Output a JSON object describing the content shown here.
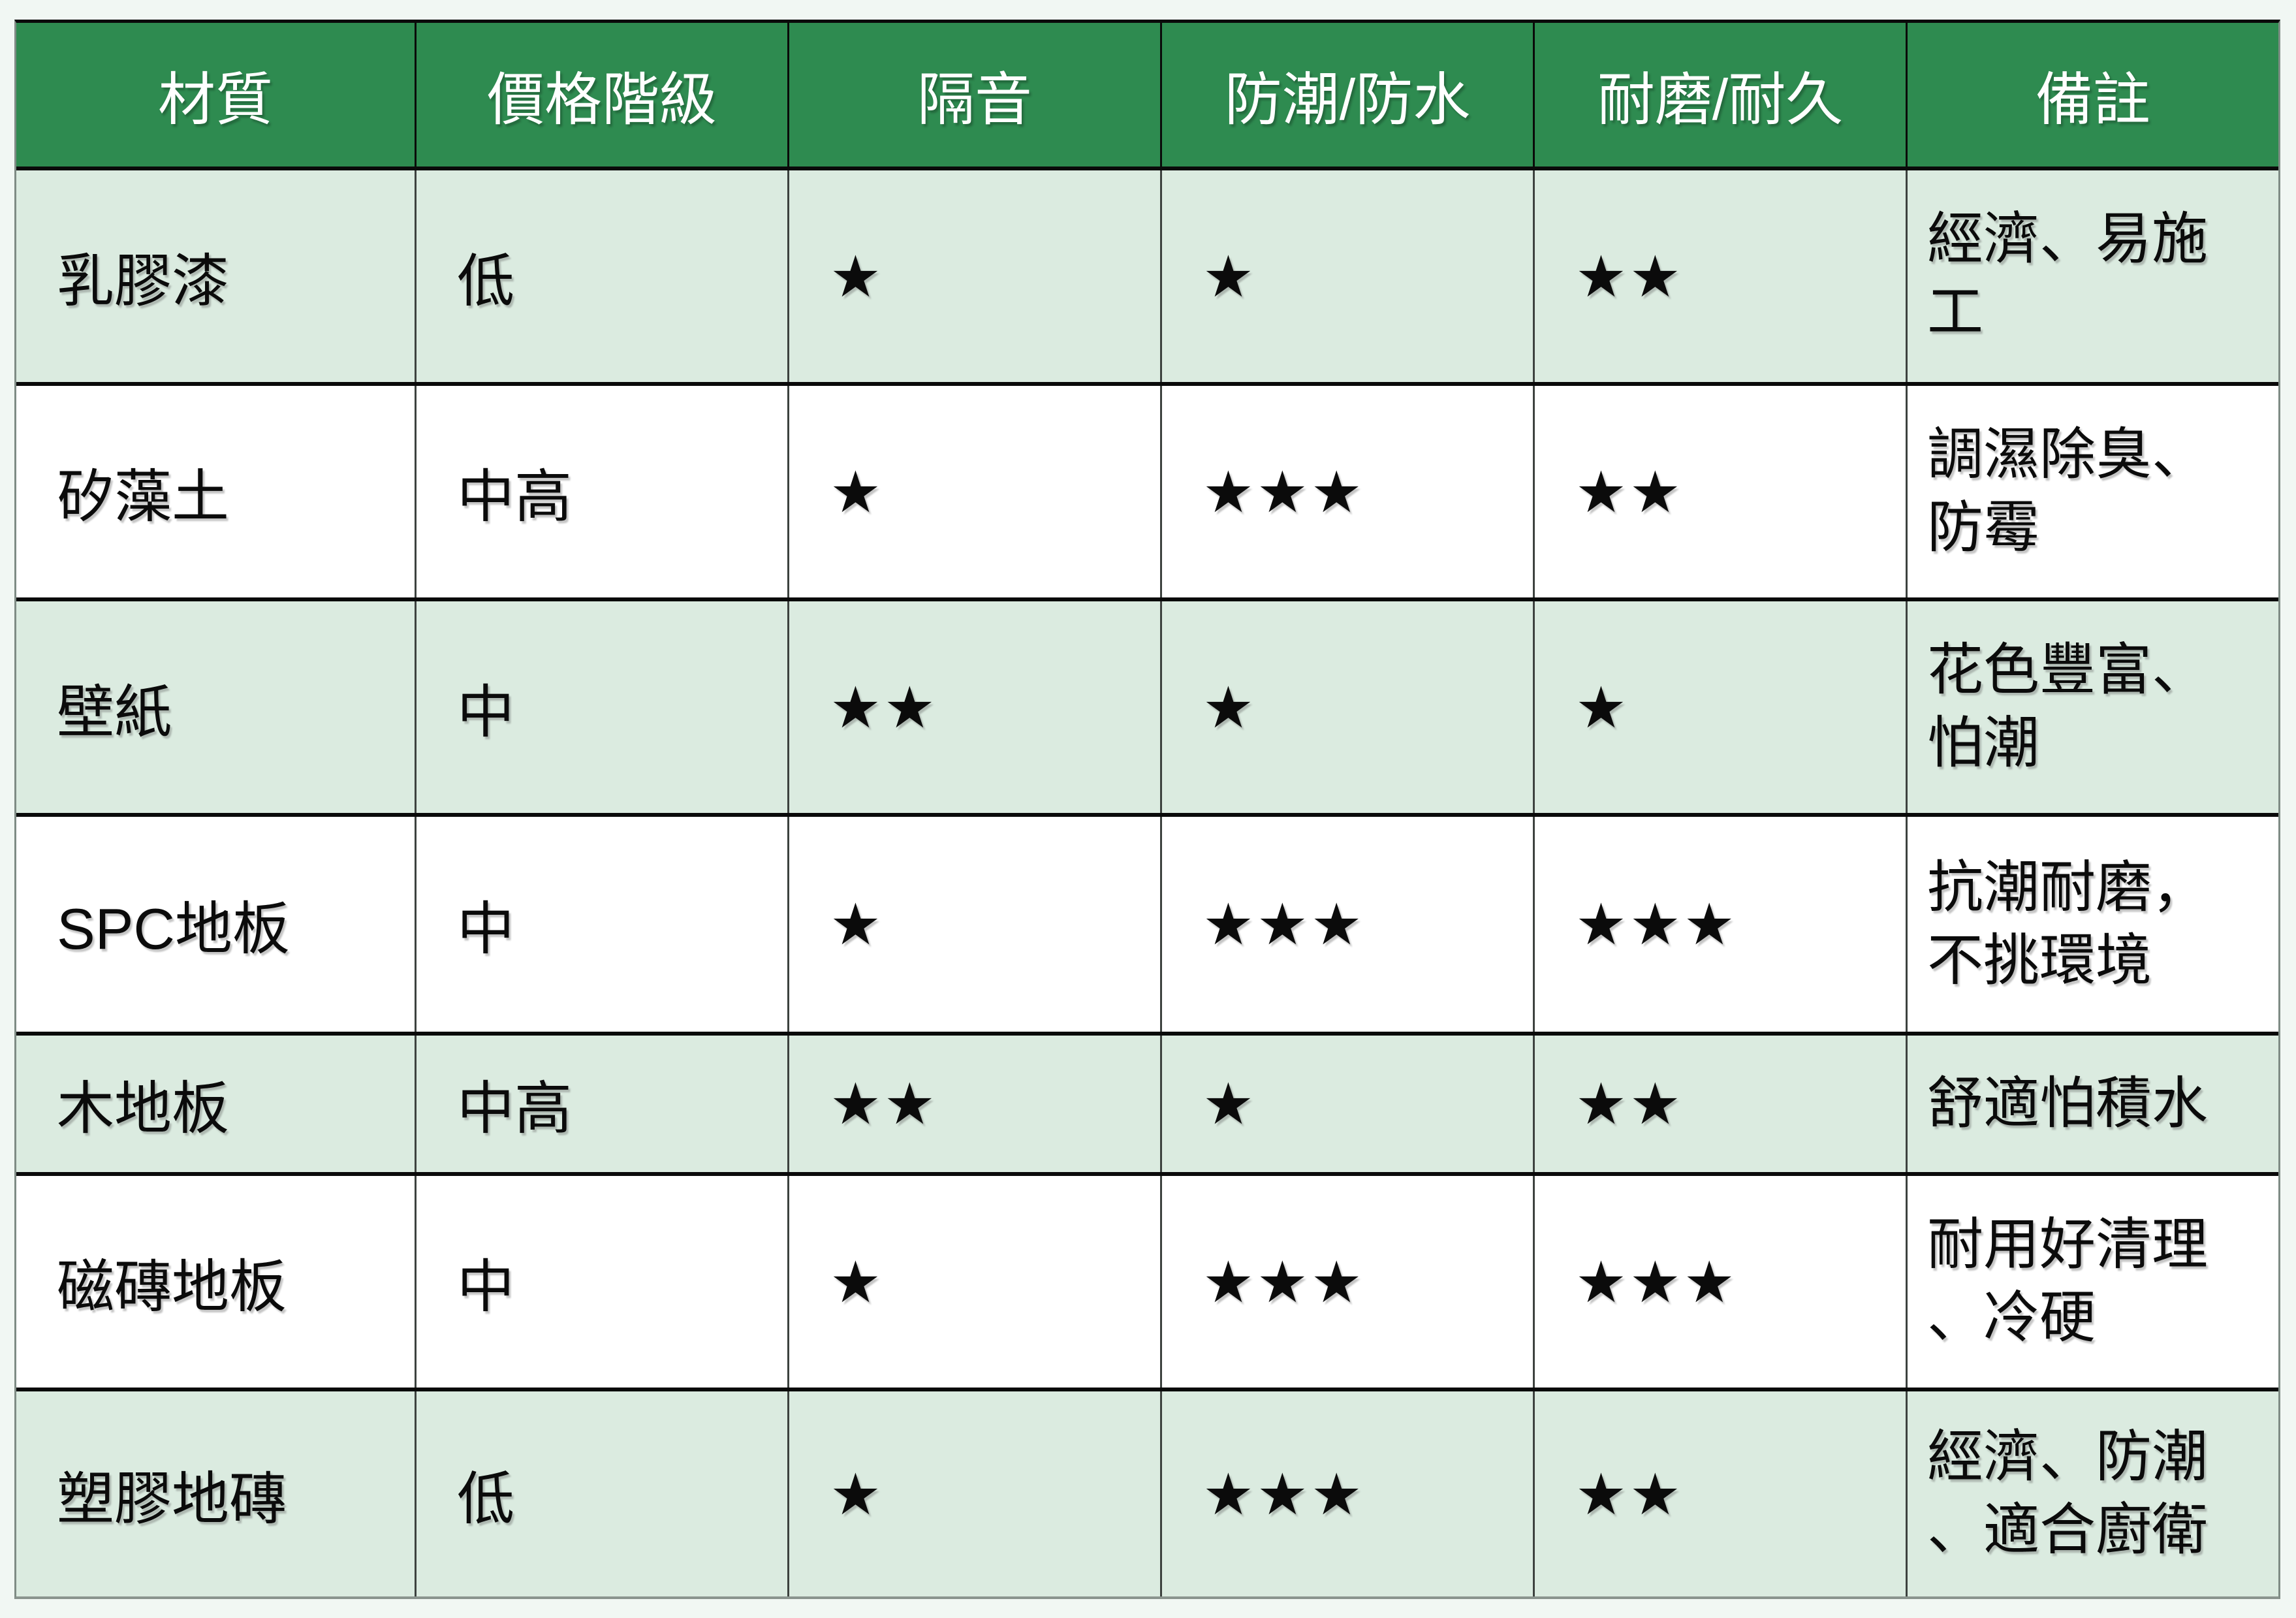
{
  "page": {
    "background": "#F1F7F3"
  },
  "table": {
    "header": {
      "bg": "#2E8B50",
      "text_color": "#FFFFFF",
      "columns": [
        "材質",
        "價格階級",
        "隔音",
        "防潮/防水",
        "耐磨/耐久",
        "備註"
      ]
    },
    "row_alt_bg": "#DBEBE0",
    "grid_line_color": "#0a0a0a",
    "outer_border_color": "#7f8c85",
    "rows": [
      {
        "material": "乳膠漆",
        "price": "低",
        "soundproof": "★",
        "waterproof": "★",
        "durability": "★★",
        "notes": "經濟、易施\n工"
      },
      {
        "material": "矽藻土",
        "price": "中高",
        "soundproof": "★",
        "waterproof": "★★★",
        "durability": "★★",
        "notes": "調濕除臭、\n防霉"
      },
      {
        "material": "壁紙",
        "price": "中",
        "soundproof": "★★",
        "waterproof": "★",
        "durability": "★",
        "notes": "花色豐富、\n怕潮"
      },
      {
        "material": "SPC地板",
        "price": "中",
        "soundproof": "★",
        "waterproof": "★★★",
        "durability": "★★★",
        "notes": "抗潮耐磨，\n不挑環境"
      },
      {
        "material": "木地板",
        "price": "中高",
        "soundproof": "★★",
        "waterproof": "★",
        "durability": "★★",
        "notes": "舒適怕積水"
      },
      {
        "material": "磁磚地板",
        "price": "中",
        "soundproof": "★",
        "waterproof": "★★★",
        "durability": "★★★",
        "notes": "耐用好清理\n、冷硬"
      },
      {
        "material": "塑膠地磚",
        "price": "低",
        "soundproof": "★",
        "waterproof": "★★★",
        "durability": "★★",
        "notes": "經濟、防潮\n、適合廚衛"
      }
    ]
  }
}
